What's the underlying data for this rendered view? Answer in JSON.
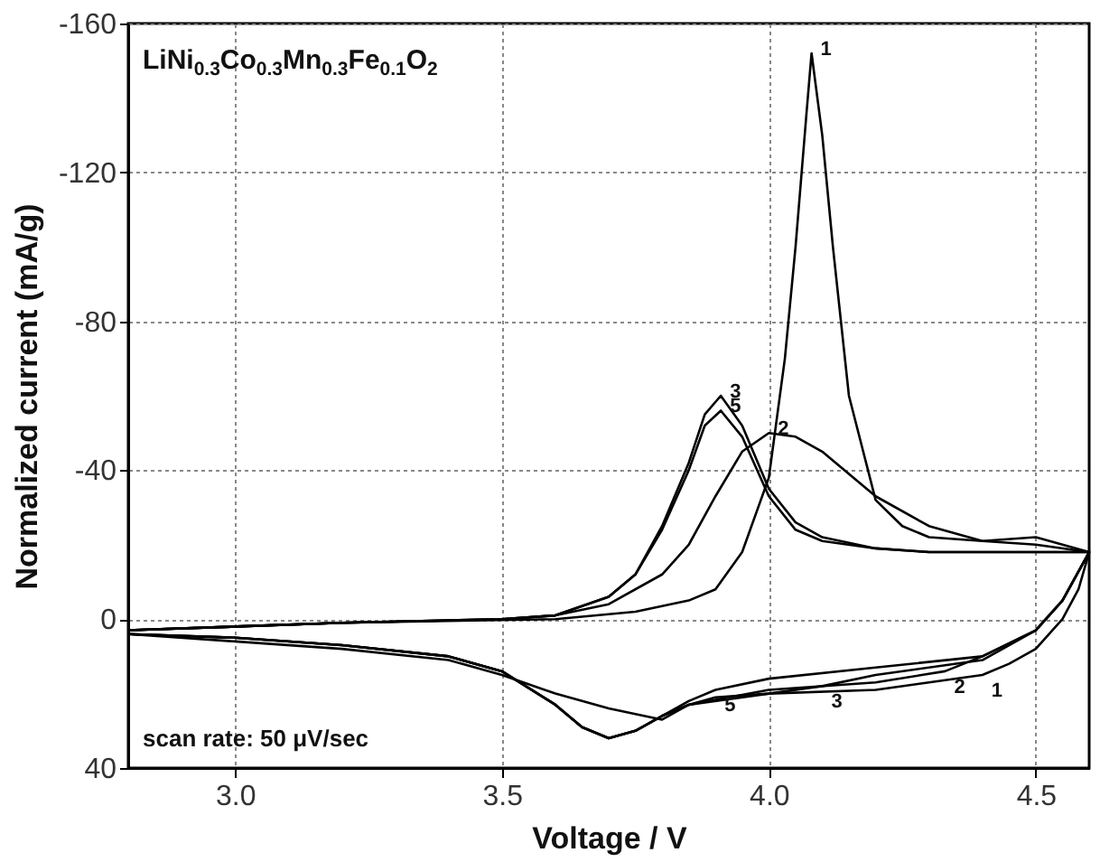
{
  "chart_data": {
    "type": "line",
    "xlabel": "Voltage / V",
    "ylabel": "Normalized current (mA/g)",
    "xlim": [
      2.8,
      4.6
    ],
    "xticks": [
      {
        "value": 3,
        "label": "3.0"
      },
      3.5,
      {
        "value": 4,
        "label": "4.0"
      },
      4.5
    ],
    "ylim": [
      40,
      -160
    ],
    "yticks": [
      -160,
      -120,
      -80,
      -40,
      0,
      40
    ],
    "grid": true,
    "line_style": "solid",
    "marker": "none",
    "series": [
      {
        "color": "#000000",
        "x": [
          2.8,
          3.2,
          3.6,
          3.75,
          3.85,
          3.9,
          3.95,
          4.0,
          4.03,
          4.05,
          4.07,
          4.08,
          4.1,
          4.12,
          4.15,
          4.2,
          4.25,
          4.3,
          4.4,
          4.5,
          4.6,
          4.58,
          4.55,
          4.5,
          4.45,
          4.4,
          4.3,
          4.2,
          4.0,
          3.85,
          3.8,
          3.7,
          3.6,
          3.5,
          3.4,
          3.2,
          3.0,
          2.8
        ],
        "values": [
          3,
          1,
          0,
          -2,
          -5,
          -8,
          -18,
          -38,
          -70,
          -100,
          -135,
          -152,
          -130,
          -100,
          -60,
          -32,
          -25,
          -22,
          -21,
          -22,
          -18,
          -8,
          0,
          8,
          12,
          15,
          17,
          19,
          20,
          23,
          27,
          24,
          20,
          15,
          11,
          8,
          6,
          4
        ]
      },
      {
        "color": "#000000",
        "x": [
          2.8,
          3.2,
          3.5,
          3.6,
          3.7,
          3.8,
          3.85,
          3.9,
          3.95,
          4.0,
          4.05,
          4.1,
          4.2,
          4.3,
          4.4,
          4.5,
          4.6,
          4.55,
          4.5,
          4.4,
          4.33,
          4.2,
          4.0,
          3.85,
          3.8,
          3.75,
          3.7,
          3.65,
          3.6,
          3.5,
          3.4,
          3.2,
          3.0,
          2.8
        ],
        "values": [
          3,
          1,
          0,
          -1,
          -4,
          -12,
          -20,
          -33,
          -45,
          -50,
          -49,
          -45,
          -33,
          -25,
          -21,
          -20,
          -18,
          -5,
          3,
          10,
          14,
          17,
          19,
          23,
          26,
          30,
          32,
          29,
          23,
          14,
          10,
          7,
          5,
          4
        ]
      },
      {
        "color": "#000000",
        "x": [
          2.8,
          3.2,
          3.5,
          3.6,
          3.7,
          3.75,
          3.8,
          3.85,
          3.88,
          3.91,
          3.95,
          4.0,
          4.05,
          4.1,
          4.2,
          4.3,
          4.5,
          4.6,
          4.55,
          4.5,
          4.4,
          4.2,
          4.1,
          4.0,
          3.9,
          3.85,
          3.8,
          3.75,
          3.7,
          3.65,
          3.6,
          3.5,
          3.4,
          3.2,
          3.0,
          2.8
        ],
        "values": [
          3,
          1,
          0,
          -1,
          -6,
          -12,
          -25,
          -42,
          -55,
          -60,
          -52,
          -35,
          -26,
          -22,
          -19,
          -18,
          -18,
          -18,
          -5,
          3,
          11,
          15,
          18,
          20,
          21,
          23,
          26,
          30,
          32,
          29,
          23,
          14,
          10,
          7,
          5,
          4
        ]
      },
      {
        "color": "#000000",
        "x": [
          2.8,
          3.2,
          3.5,
          3.6,
          3.7,
          3.75,
          3.8,
          3.85,
          3.88,
          3.91,
          3.95,
          4.0,
          4.05,
          4.1,
          4.2,
          4.3,
          4.5,
          4.6,
          4.55,
          4.5,
          4.4,
          4.2,
          4.0,
          3.9,
          3.85,
          3.8,
          3.75,
          3.7,
          3.65,
          3.6,
          3.5,
          3.4,
          3.2,
          3.0,
          2.8
        ],
        "values": [
          3,
          1,
          0,
          -1,
          -6,
          -12,
          -24,
          -40,
          -52,
          -56,
          -49,
          -33,
          -24,
          -21,
          -19,
          -18,
          -18,
          -18,
          -5,
          3,
          10,
          13,
          16,
          19,
          22,
          26,
          30,
          32,
          29,
          23,
          14,
          10,
          7,
          5,
          4
        ]
      }
    ],
    "annotations": [
      "LiNi$_{0.3}$Co$_{0.3}$Mn$_{0.3}$Fe$_{0.1}$O$_{2}$",
      "scan rate: 50 μV/sec",
      {
        "text": "1",
        "x": 4.08,
        "y": -152
      },
      {
        "text": "2",
        "x": 4.0,
        "y": -50
      },
      {
        "text": "3",
        "x": 3.91,
        "y": -60
      },
      {
        "text": "5",
        "x": 3.91,
        "y": -56
      },
      {
        "text": "5",
        "x": 3.9,
        "y": 19
      },
      {
        "text": "3",
        "x": 4.1,
        "y": 18
      },
      {
        "text": "2",
        "x": 4.33,
        "y": 14
      },
      {
        "text": "1",
        "x": 4.4,
        "y": 15
      }
    ]
  }
}
